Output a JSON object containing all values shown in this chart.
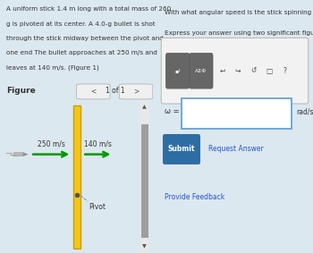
{
  "bg_color": "#dce8f0",
  "right_panel_bg": "#ffffff",
  "figure_label": "Figure",
  "page_label": "1 of 1",
  "problem_text_lines": [
    "A uniform stick 1.4 m long with a total mass of 260",
    "g is pivoted at its center. A 4.0-g bullet is shot",
    "through the stick midway between the pivot and",
    "one end The bullet approaches at 250 m/s and",
    "leaves at 140 m/s. (Figure 1)"
  ],
  "figure_1_link": "(Figure 1)",
  "question_text": "With what angular speed is the stick spinning after the collision?",
  "subtext": "Express your answer using two significant figures.",
  "omega_label": "ω =",
  "units_label": "rad/s",
  "submit_text": "Submit",
  "request_answer_text": "Request Answer",
  "provide_feedback_text": "Provide Feedback",
  "bullet_v1": "250 m/s",
  "bullet_v2": "140 m/s",
  "pivot_label": "Pivot",
  "stick_color": "#f5c518",
  "stick_edge_color": "#c8a000",
  "scrollbar_bg": "#e8e8e8",
  "scrollbar_thumb": "#9e9e9e",
  "bullet_body_color": "#b0b0b0",
  "bullet_tip_color": "#888888",
  "arrow_color": "#009900",
  "pivot_line_color": "#888888",
  "text_color": "#333333",
  "link_color": "#2255cc",
  "input_border_color": "#5b9bd5",
  "submit_btn_color": "#2e6da4",
  "submit_btn_text_color": "#ffffff",
  "toolbar_btn_color": "#6c6c6c",
  "panel_border_color": "#c0c0c0",
  "figure_border_color": "#bbbbbb"
}
